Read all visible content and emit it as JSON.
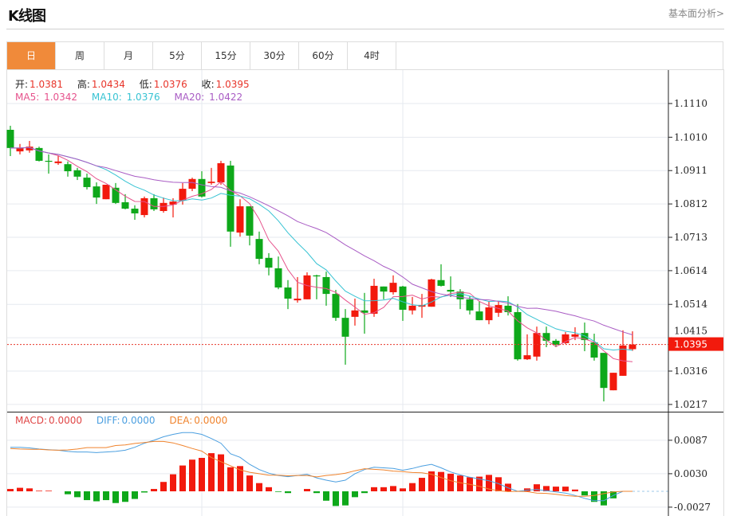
{
  "header": {
    "title": "K线图",
    "link": "基本面分析>"
  },
  "tabs": [
    {
      "label": "日",
      "active": true
    },
    {
      "label": "周"
    },
    {
      "label": "月"
    },
    {
      "label": "5分"
    },
    {
      "label": "15分"
    },
    {
      "label": "30分"
    },
    {
      "label": "60分"
    },
    {
      "label": "4时"
    }
  ],
  "ohlc": {
    "open_label": "开:",
    "open": "1.0381",
    "high_label": "高:",
    "high": "1.0434",
    "low_label": "低:",
    "low": "1.0376",
    "close_label": "收:",
    "close": "1.0395"
  },
  "ma": {
    "ma5_label": "MA5:",
    "ma5": "1.0342",
    "ma10_label": "MA10:",
    "ma10": "1.0376",
    "ma20_label": "MA20:",
    "ma20": "1.0422"
  },
  "macd_legend": {
    "macd_label": "MACD:",
    "macd": "0.0000",
    "diff_label": "DIFF:",
    "diff": "0.0000",
    "dea_label": "DEA:",
    "dea": "0.0000"
  },
  "colors": {
    "up": "#f21a0d",
    "down": "#0ea81a",
    "ma5": "#e6528c",
    "ma10": "#38c3d3",
    "ma20": "#a95cc4",
    "diff": "#4b9fe0",
    "dea": "#f0842e",
    "accent": "#f08a3a"
  },
  "chart_data": {
    "type": "candlestick",
    "price_axis": {
      "ticks": [
        "1.1110",
        "1.1010",
        "1.0911",
        "1.0812",
        "1.0713",
        "1.0614",
        "1.0514",
        "1.0415",
        "1.0316",
        "1.0217"
      ],
      "range": [
        1.0217,
        1.111
      ]
    },
    "last_price": "1.0395",
    "candles_ohlc": [
      [
        1.1032,
        1.1044,
        1.0954,
        1.0978
      ],
      [
        1.0968,
        1.099,
        1.0959,
        1.0978
      ],
      [
        1.0971,
        1.0999,
        1.0964,
        1.0982
      ],
      [
        1.0978,
        1.0982,
        1.0938,
        1.094
      ],
      [
        1.094,
        1.0959,
        1.0902,
        1.0938
      ],
      [
        1.0933,
        1.0954,
        1.0928,
        1.0938
      ],
      [
        1.093,
        1.0938,
        1.0893,
        1.0909
      ],
      [
        1.0912,
        1.0919,
        1.0883,
        1.0893
      ],
      [
        1.089,
        1.0902,
        1.0855,
        1.0862
      ],
      [
        1.0864,
        1.0876,
        1.0812,
        1.0831
      ],
      [
        1.0826,
        1.0869,
        1.0826,
        1.0869
      ],
      [
        1.086,
        1.0874,
        1.0812,
        1.0815
      ],
      [
        1.0817,
        1.0841,
        1.0796,
        1.0798
      ],
      [
        1.0798,
        1.0808,
        1.0765,
        1.0784
      ],
      [
        1.0779,
        1.0834,
        1.0772,
        1.0829
      ],
      [
        1.0829,
        1.0841,
        1.0791,
        1.0796
      ],
      [
        1.0791,
        1.0831,
        1.0786,
        1.0815
      ],
      [
        1.081,
        1.0829,
        1.0772,
        1.0819
      ],
      [
        1.0822,
        1.0874,
        1.081,
        1.0857
      ],
      [
        1.0857,
        1.089,
        1.085,
        1.0886
      ],
      [
        1.0886,
        1.0909,
        1.0831,
        1.0834
      ],
      [
        1.0874,
        1.0919,
        1.0869,
        1.0878
      ],
      [
        1.0876,
        1.094,
        1.0869,
        1.0933
      ],
      [
        1.0926,
        1.094,
        1.0685,
        1.073
      ],
      [
        1.0727,
        1.0826,
        1.0715,
        1.0805
      ],
      [
        1.0805,
        1.0805,
        1.0689,
        1.0718
      ],
      [
        1.0708,
        1.073,
        1.0633,
        1.0649
      ],
      [
        1.0652,
        1.0666,
        1.06,
        1.0623
      ],
      [
        1.0621,
        1.0656,
        1.0559,
        1.0564
      ],
      [
        1.0564,
        1.0586,
        1.05,
        1.0531
      ],
      [
        1.0526,
        1.0595,
        1.0519,
        1.0531
      ],
      [
        1.0529,
        1.0609,
        1.0529,
        1.06
      ],
      [
        1.06,
        1.0602,
        1.0529,
        1.0597
      ],
      [
        1.0595,
        1.0611,
        1.051,
        1.0545
      ],
      [
        1.0545,
        1.0557,
        1.0465,
        1.0474
      ],
      [
        1.0474,
        1.05,
        1.0335,
        1.0418
      ],
      [
        1.0477,
        1.0531,
        1.0451,
        1.0496
      ],
      [
        1.0496,
        1.0548,
        1.0427,
        1.0489
      ],
      [
        1.0486,
        1.059,
        1.0477,
        1.0569
      ],
      [
        1.0567,
        1.0567,
        1.0529,
        1.0552
      ],
      [
        1.055,
        1.06,
        1.0543,
        1.0578
      ],
      [
        1.0567,
        1.0569,
        1.0465,
        1.0498
      ],
      [
        1.0496,
        1.0536,
        1.0484,
        1.051
      ],
      [
        1.0507,
        1.0545,
        1.0474,
        1.0512
      ],
      [
        1.0507,
        1.059,
        1.0507,
        1.0588
      ],
      [
        1.0586,
        1.0633,
        1.0567,
        1.0569
      ],
      [
        1.0557,
        1.0597,
        1.0536,
        1.0552
      ],
      [
        1.0552,
        1.0559,
        1.05,
        1.0529
      ],
      [
        1.0529,
        1.0538,
        1.0484,
        1.0496
      ],
      [
        1.0493,
        1.0524,
        1.0467,
        1.0467
      ],
      [
        1.0467,
        1.0524,
        1.0455,
        1.0505
      ],
      [
        1.0489,
        1.0524,
        1.0477,
        1.0512
      ],
      [
        1.051,
        1.0538,
        1.0481,
        1.0491
      ],
      [
        1.0491,
        1.0515,
        1.0347,
        1.0351
      ],
      [
        1.0351,
        1.0425,
        1.0349,
        1.0363
      ],
      [
        1.0359,
        1.0448,
        1.0347,
        1.0429
      ],
      [
        1.0429,
        1.0448,
        1.0387,
        1.0406
      ],
      [
        1.0406,
        1.0411,
        1.0387,
        1.0394
      ],
      [
        1.0399,
        1.0432,
        1.0396,
        1.0425
      ],
      [
        1.0418,
        1.0446,
        1.0408,
        1.0425
      ],
      [
        1.0429,
        1.046,
        1.0375,
        1.0408
      ],
      [
        1.0401,
        1.0427,
        1.0347,
        1.0356
      ],
      [
        1.037,
        1.037,
        1.0226,
        1.0266
      ],
      [
        1.0259,
        1.0311,
        1.0259,
        1.0311
      ],
      [
        1.0302,
        1.0437,
        1.0302,
        1.0392
      ],
      [
        1.0381,
        1.0434,
        1.0376,
        1.0395
      ]
    ],
    "macd_axis": {
      "ticks": [
        "0.0087",
        "0.0030",
        "-0.0027"
      ],
      "range": [
        -0.0027,
        0.0087
      ]
    },
    "macd_hist": [
      0.0004,
      0.0006,
      0.0005,
      0.0001,
      0.0001,
      0,
      -0.0005,
      -0.001,
      -0.0015,
      -0.0017,
      -0.0015,
      -0.002,
      -0.0018,
      -0.0013,
      -0.0002,
      0.0004,
      0.0016,
      0.0029,
      0.0044,
      0.0054,
      0.0057,
      0.0065,
      0.0063,
      0.0041,
      0.0043,
      0.0027,
      0.0014,
      0.0007,
      -0.0001,
      -0.0003,
      0,
      0.0004,
      -0.0003,
      -0.0016,
      -0.0025,
      -0.0024,
      -0.001,
      -0.0003,
      0.0007,
      0.0007,
      0.0009,
      0.0005,
      0.0014,
      0.0023,
      0.0034,
      0.0033,
      0.003,
      0.0027,
      0.0024,
      0.0025,
      0.0028,
      0.0024,
      0.0013,
      0,
      0.0005,
      0.0012,
      0.0009,
      0.0008,
      0.0008,
      0.0003,
      -0.0007,
      -0.0018,
      -0.0024,
      -0.0012,
      0,
      0
    ],
    "diff": [
      0.0075,
      0.0075,
      0.0074,
      0.0072,
      0.0071,
      0.007,
      0.0068,
      0.0067,
      0.0067,
      0.0066,
      0.0067,
      0.0068,
      0.007,
      0.0075,
      0.0082,
      0.0087,
      0.0093,
      0.0097,
      0.01,
      0.01,
      0.0097,
      0.009,
      0.0082,
      0.0064,
      0.0058,
      0.0046,
      0.0037,
      0.0031,
      0.0027,
      0.0025,
      0.0027,
      0.0029,
      0.0023,
      0.0019,
      0.0016,
      0.0019,
      0.003,
      0.0037,
      0.0041,
      0.004,
      0.0039,
      0.0036,
      0.0039,
      0.0043,
      0.0046,
      0.004,
      0.0033,
      0.0028,
      0.0024,
      0.0021,
      0.0018,
      0.0013,
      0.0006,
      0,
      0.0002,
      0.0003,
      0.0001,
      -0.0001,
      -0.0003,
      -0.0007,
      -0.0012,
      -0.0016,
      -0.0016,
      -0.0007,
      0,
      0
    ]
  }
}
